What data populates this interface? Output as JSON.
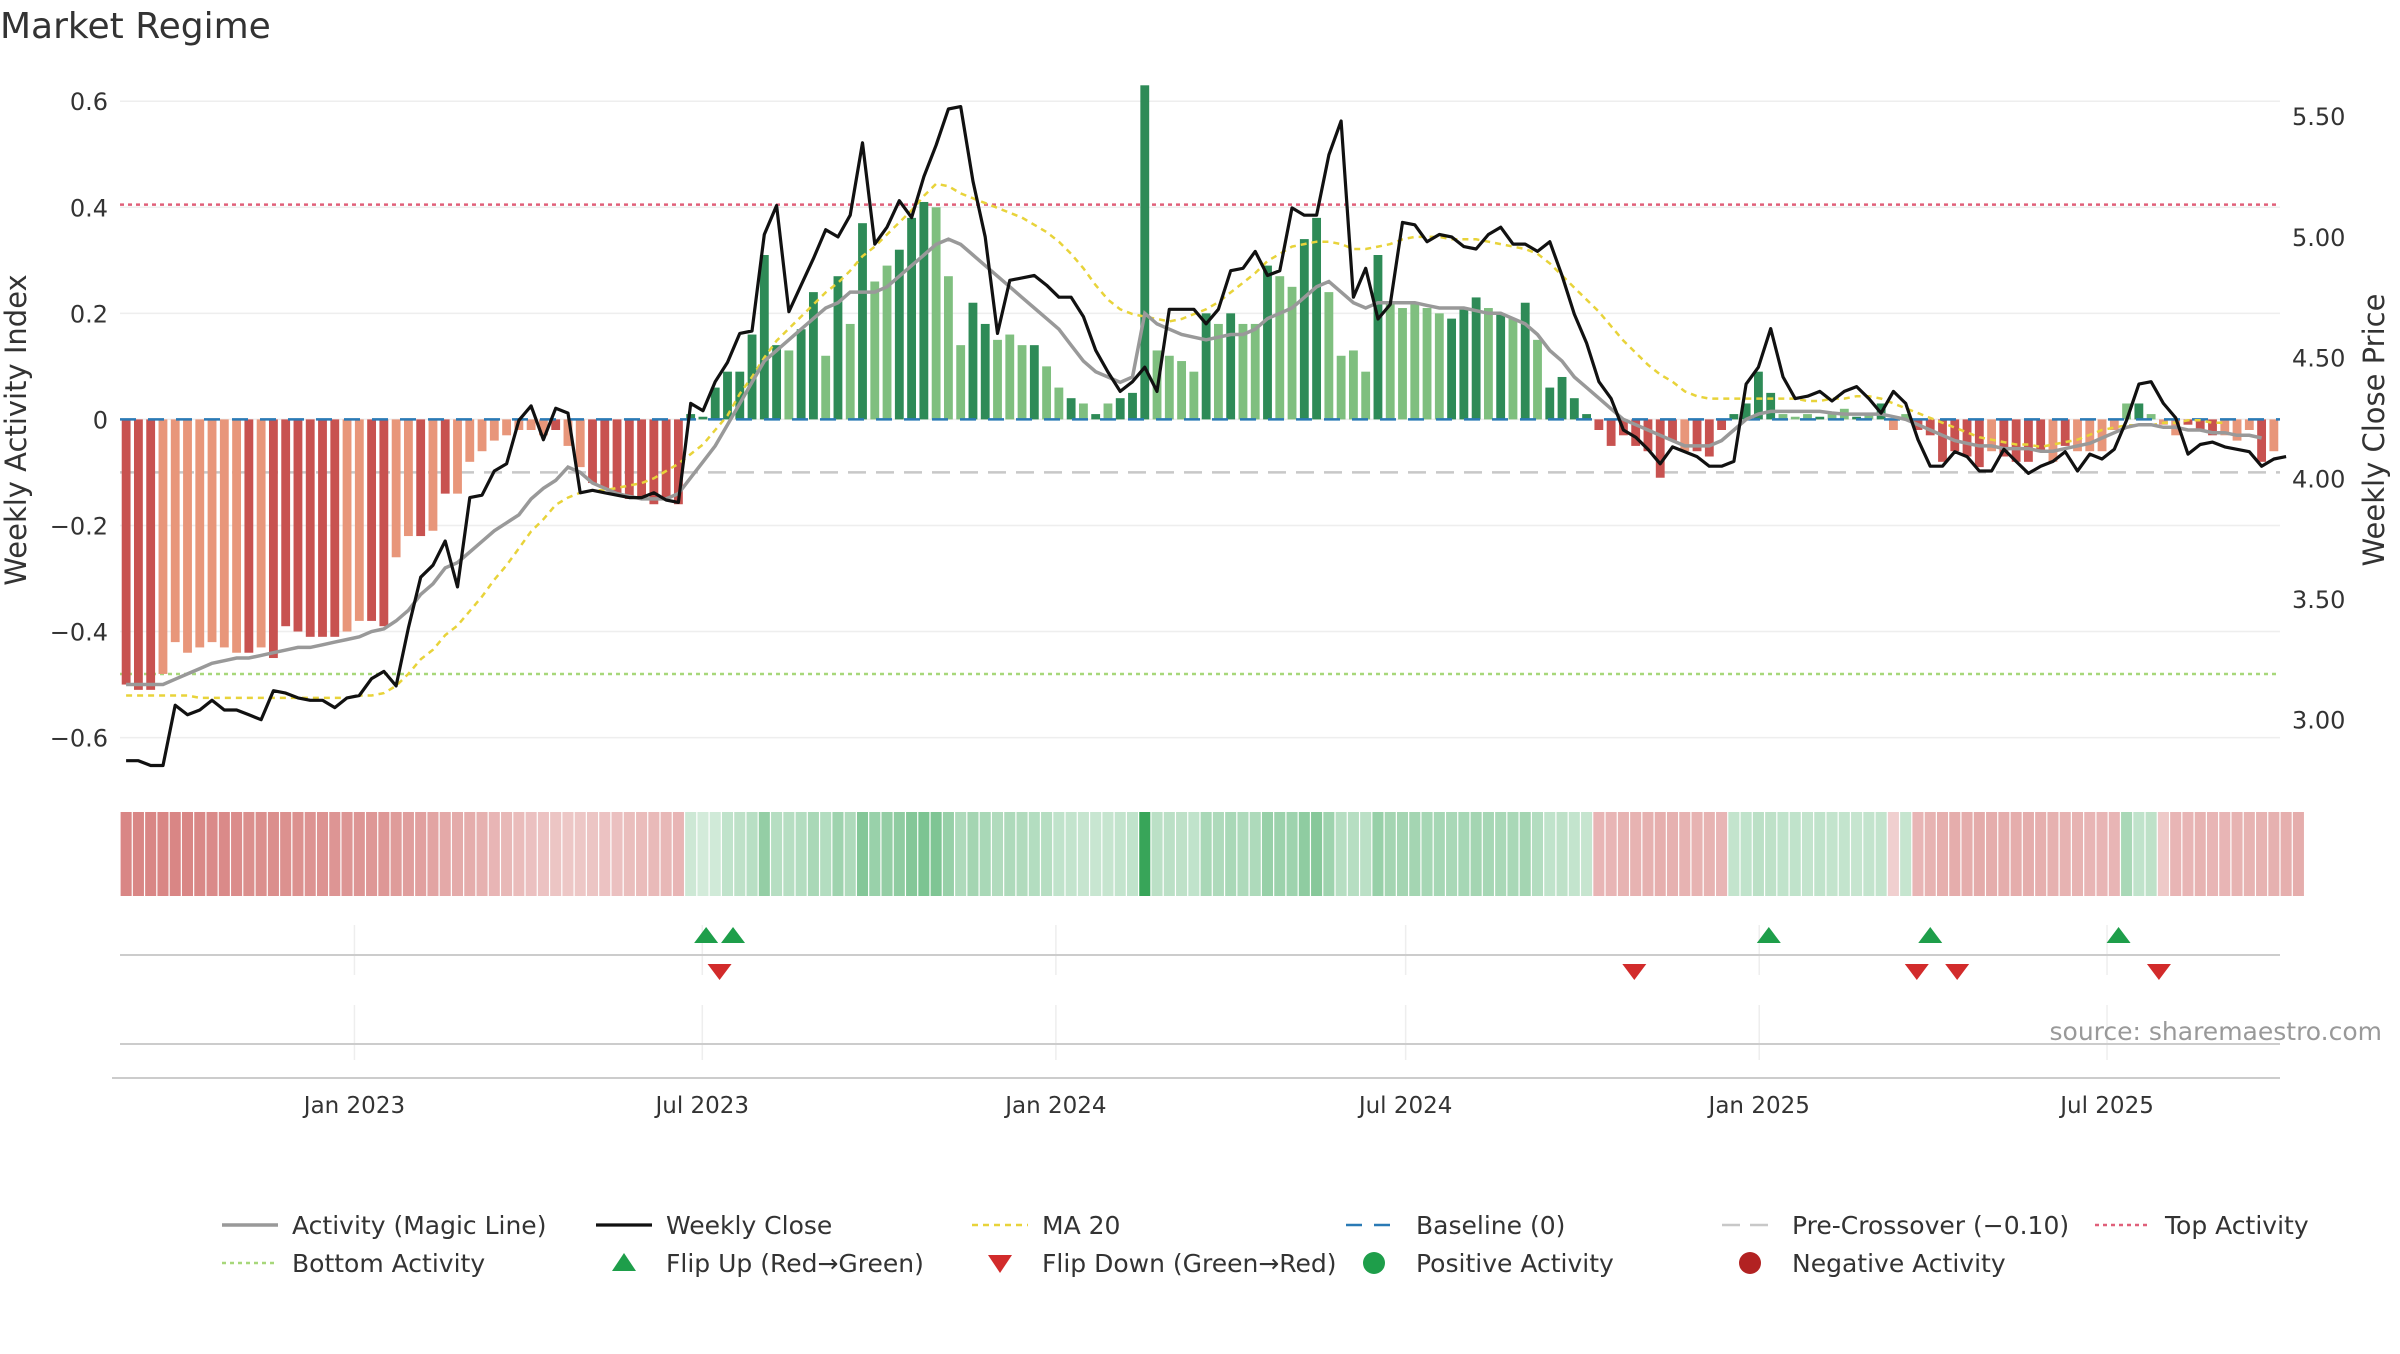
{
  "title": "Market Regime",
  "source": "source: sharemaestro.com",
  "colors": {
    "strong_pos": "#2e8b57",
    "weak_pos": "#7fbf7f",
    "strong_neg": "#c85250",
    "weak_neg": "#e8967a",
    "close": "#111111",
    "magic": "#999999",
    "ma20": "#e8d33a",
    "top": "#e0607a",
    "bottom": "#a7d77a",
    "baseline": "#2a7ab5",
    "precross": "#c8c8c8",
    "flip_up": "#1e9e4a",
    "flip_down": "#d22b2b"
  },
  "chart_data": {
    "type": "bar",
    "x_ticks": [
      "Jan 2023",
      "Jul 2023",
      "Jan 2024",
      "Jul 2024",
      "Jan 2025",
      "Jul 2025"
    ],
    "x_range": [
      "2022-09-01",
      "2025-09-29"
    ],
    "left_axis": {
      "label": "Weekly Activity Index",
      "ylim": [
        -0.68,
        0.64
      ],
      "ticks": [
        0.6,
        0.4,
        0.2,
        0,
        -0.2,
        -0.4,
        -0.6
      ],
      "tick_labels": [
        "0.6",
        "0.4",
        "0.2",
        "0",
        "−0.2",
        "−0.4",
        "−0.6"
      ]
    },
    "right_axis": {
      "label": "Weekly Close Price",
      "ylim": [
        2.75,
        5.65
      ],
      "ticks": [
        5.5,
        5.0,
        4.5,
        4.0,
        3.5,
        3.0
      ],
      "tick_labels": [
        "5.50",
        "5.00",
        "4.50",
        "4.00",
        "3.50",
        "3.00"
      ]
    },
    "reference_lines": {
      "top_activity": 0.405,
      "bottom_activity": -0.48,
      "baseline": 0,
      "pre_crossover": -0.1
    },
    "series": [
      {
        "name": "Activity",
        "values": [
          -0.5,
          -0.51,
          -0.51,
          -0.48,
          -0.42,
          -0.44,
          -0.43,
          -0.42,
          -0.43,
          -0.44,
          -0.44,
          -0.43,
          -0.45,
          -0.39,
          -0.4,
          -0.41,
          -0.41,
          -0.41,
          -0.4,
          -0.38,
          -0.38,
          -0.39,
          -0.26,
          -0.22,
          -0.22,
          -0.21,
          -0.14,
          -0.14,
          -0.08,
          -0.06,
          -0.04,
          -0.03,
          -0.02,
          -0.02,
          -0.03,
          -0.02,
          -0.05,
          -0.09,
          -0.12,
          -0.13,
          -0.14,
          -0.15,
          -0.15,
          -0.16,
          -0.15,
          -0.16,
          0.01,
          0.005,
          0.06,
          0.09,
          0.09,
          0.16,
          0.31,
          0.14,
          0.13,
          0.17,
          0.24,
          0.12,
          0.27,
          0.18,
          0.37,
          0.26,
          0.29,
          0.32,
          0.38,
          0.41,
          0.4,
          0.27,
          0.14,
          0.22,
          0.18,
          0.15,
          0.16,
          0.14,
          0.14,
          0.1,
          0.06,
          0.04,
          0.03,
          0.01,
          0.03,
          0.04,
          0.05,
          0.63,
          0.13,
          0.12,
          0.11,
          0.09,
          0.2,
          0.18,
          0.2,
          0.18,
          0.18,
          0.29,
          0.27,
          0.25,
          0.34,
          0.38,
          0.24,
          0.12,
          0.13,
          0.09,
          0.31,
          0.22,
          0.21,
          0.22,
          0.21,
          0.2,
          0.19,
          0.21,
          0.23,
          0.21,
          0.2,
          0.19,
          0.22,
          0.15,
          0.06,
          0.08,
          0.04,
          0.01,
          -0.02,
          -0.05,
          -0.03,
          -0.05,
          -0.06,
          -0.11,
          -0.04,
          -0.06,
          -0.06,
          -0.07,
          -0.02,
          0.01,
          0.03,
          0.09,
          0.05,
          0.01,
          0.005,
          0.01,
          0.005,
          0.01,
          0.02,
          0.005,
          0.01,
          0.03,
          -0.02,
          0.01,
          -0.02,
          -0.03,
          -0.08,
          -0.06,
          -0.07,
          -0.09,
          -0.06,
          -0.07,
          -0.08,
          -0.08,
          -0.06,
          -0.08,
          -0.05,
          -0.06,
          -0.06,
          -0.06,
          -0.02,
          0.03,
          0.03,
          0.01,
          -0.01,
          -0.03,
          -0.01,
          -0.02,
          -0.03,
          -0.03,
          -0.04,
          -0.02,
          -0.08,
          -0.06
        ],
        "strength": [
          1,
          1,
          1,
          0,
          0,
          0,
          0,
          0,
          0,
          0,
          1,
          0,
          1,
          1,
          1,
          1,
          1,
          1,
          0,
          0,
          1,
          1,
          0,
          0,
          1,
          0,
          1,
          0,
          0,
          0,
          0,
          0,
          0,
          0,
          0,
          1,
          0,
          0,
          1,
          1,
          1,
          1,
          1,
          1,
          1,
          1,
          1,
          1,
          1,
          1,
          1,
          1,
          1,
          1,
          0,
          1,
          1,
          0,
          1,
          0,
          1,
          0,
          0,
          1,
          1,
          1,
          0,
          0,
          0,
          1,
          1,
          0,
          0,
          0,
          1,
          0,
          0,
          1,
          0,
          1,
          0,
          1,
          1,
          1,
          0,
          0,
          0,
          0,
          1,
          0,
          1,
          0,
          0,
          1,
          0,
          0,
          1,
          1,
          0,
          0,
          0,
          0,
          1,
          0,
          0,
          0,
          0,
          0,
          1,
          1,
          1,
          0,
          1,
          0,
          1,
          0,
          1,
          1,
          1,
          1,
          1,
          1,
          1,
          1,
          1,
          1,
          1,
          0,
          1,
          1,
          1,
          1,
          1,
          1,
          1,
          0,
          0,
          0,
          1,
          0,
          0,
          1,
          0,
          1,
          0,
          0,
          1,
          1,
          1,
          1,
          1,
          1,
          0,
          1,
          1,
          1,
          1,
          0,
          1,
          0,
          0,
          0,
          0,
          0,
          1,
          0,
          0,
          0,
          1,
          1,
          1,
          0,
          0,
          0,
          1,
          0,
          1,
          0
        ]
      },
      {
        "name": "Weekly Close",
        "axis": "right",
        "values": [
          2.83,
          2.83,
          2.81,
          2.81,
          3.06,
          3.02,
          3.04,
          3.08,
          3.04,
          3.04,
          3.02,
          3.0,
          3.12,
          3.11,
          3.09,
          3.08,
          3.08,
          3.05,
          3.09,
          3.1,
          3.17,
          3.2,
          3.14,
          3.38,
          3.59,
          3.64,
          3.74,
          3.55,
          3.92,
          3.93,
          4.03,
          4.06,
          4.24,
          4.3,
          4.16,
          4.29,
          4.27,
          3.94,
          3.95,
          3.94,
          3.93,
          3.92,
          3.92,
          3.94,
          3.91,
          3.9,
          4.31,
          4.28,
          4.4,
          4.48,
          4.6,
          4.61,
          5.01,
          5.13,
          4.69,
          4.8,
          4.91,
          5.03,
          5.0,
          5.09,
          5.39,
          4.97,
          5.04,
          5.15,
          5.08,
          5.25,
          5.38,
          5.53,
          5.54,
          5.23,
          5.0,
          4.6,
          4.82,
          4.83,
          4.84,
          4.8,
          4.75,
          4.75,
          4.67,
          4.53,
          4.44,
          4.36,
          4.4,
          4.46,
          4.36,
          4.7,
          4.7,
          4.7,
          4.64,
          4.7,
          4.86,
          4.87,
          4.94,
          4.84,
          4.86,
          5.12,
          5.09,
          5.09,
          5.34,
          5.48,
          4.75,
          4.87,
          4.66,
          4.72,
          5.06,
          5.05,
          4.98,
          5.01,
          5.0,
          4.96,
          4.95,
          5.01,
          5.04,
          4.97,
          4.97,
          4.94,
          4.98,
          4.84,
          4.68,
          4.56,
          4.4,
          4.33,
          4.2,
          4.17,
          4.12,
          4.06,
          4.13,
          4.11,
          4.09,
          4.05,
          4.05,
          4.07,
          4.39,
          4.46,
          4.62,
          4.42,
          4.33,
          4.34,
          4.36,
          4.32,
          4.36,
          4.38,
          4.33,
          4.27,
          4.36,
          4.31,
          4.16,
          4.05,
          4.05,
          4.11,
          4.09,
          4.03,
          4.03,
          4.12,
          4.07,
          4.02,
          4.05,
          4.07,
          4.11,
          4.03,
          4.1,
          4.08,
          4.12,
          4.24,
          4.39,
          4.4,
          4.31,
          4.25,
          4.1,
          4.14,
          4.15,
          4.13,
          4.12,
          4.11,
          4.05,
          4.08,
          4.09
        ]
      },
      {
        "name": "Activity (Magic Line)",
        "values": [
          -0.5,
          -0.5,
          -0.5,
          -0.5,
          -0.49,
          -0.48,
          -0.47,
          -0.46,
          -0.455,
          -0.45,
          -0.45,
          -0.445,
          -0.44,
          -0.435,
          -0.43,
          -0.43,
          -0.425,
          -0.42,
          -0.415,
          -0.41,
          -0.4,
          -0.395,
          -0.38,
          -0.36,
          -0.33,
          -0.31,
          -0.28,
          -0.27,
          -0.25,
          -0.23,
          -0.21,
          -0.195,
          -0.18,
          -0.15,
          -0.13,
          -0.115,
          -0.09,
          -0.1,
          -0.12,
          -0.13,
          -0.14,
          -0.145,
          -0.15,
          -0.15,
          -0.15,
          -0.14,
          -0.11,
          -0.08,
          -0.05,
          -0.01,
          0.03,
          0.07,
          0.11,
          0.13,
          0.15,
          0.17,
          0.19,
          0.21,
          0.22,
          0.24,
          0.24,
          0.24,
          0.25,
          0.27,
          0.29,
          0.31,
          0.33,
          0.34,
          0.33,
          0.31,
          0.29,
          0.27,
          0.25,
          0.23,
          0.21,
          0.19,
          0.17,
          0.14,
          0.11,
          0.09,
          0.08,
          0.07,
          0.08,
          0.2,
          0.18,
          0.17,
          0.16,
          0.155,
          0.15,
          0.155,
          0.16,
          0.16,
          0.17,
          0.19,
          0.2,
          0.21,
          0.23,
          0.25,
          0.26,
          0.24,
          0.22,
          0.21,
          0.22,
          0.22,
          0.22,
          0.22,
          0.215,
          0.21,
          0.21,
          0.21,
          0.205,
          0.2,
          0.2,
          0.19,
          0.18,
          0.16,
          0.13,
          0.11,
          0.08,
          0.06,
          0.04,
          0.02,
          0.0,
          -0.01,
          -0.02,
          -0.03,
          -0.04,
          -0.05,
          -0.05,
          -0.05,
          -0.04,
          -0.02,
          0.0,
          0.01,
          0.015,
          0.015,
          0.015,
          0.015,
          0.015,
          0.012,
          0.01,
          0.01,
          0.01,
          0.01,
          0.005,
          0.0,
          -0.01,
          -0.02,
          -0.03,
          -0.04,
          -0.045,
          -0.05,
          -0.05,
          -0.055,
          -0.055,
          -0.055,
          -0.06,
          -0.06,
          -0.055,
          -0.05,
          -0.045,
          -0.035,
          -0.025,
          -0.015,
          -0.01,
          -0.01,
          -0.015,
          -0.015,
          -0.02,
          -0.02,
          -0.025,
          -0.025,
          -0.03,
          -0.03,
          -0.035
        ]
      },
      {
        "name": "MA 20",
        "axis": "right",
        "values": [
          3.1,
          3.1,
          3.1,
          3.1,
          3.1,
          3.1,
          3.09,
          3.09,
          3.09,
          3.09,
          3.09,
          3.09,
          3.09,
          3.09,
          3.09,
          3.09,
          3.09,
          3.09,
          3.09,
          3.1,
          3.1,
          3.11,
          3.14,
          3.19,
          3.25,
          3.29,
          3.35,
          3.39,
          3.45,
          3.51,
          3.58,
          3.64,
          3.71,
          3.78,
          3.83,
          3.89,
          3.92,
          3.94,
          3.95,
          3.95,
          3.96,
          3.97,
          3.98,
          4.0,
          4.03,
          4.06,
          4.1,
          4.14,
          4.2,
          4.26,
          4.35,
          4.42,
          4.5,
          4.57,
          4.62,
          4.67,
          4.72,
          4.77,
          4.81,
          4.86,
          4.92,
          4.96,
          5.01,
          5.06,
          5.11,
          5.17,
          5.22,
          5.21,
          5.18,
          5.16,
          5.14,
          5.12,
          5.1,
          5.08,
          5.05,
          5.02,
          4.98,
          4.93,
          4.87,
          4.8,
          4.74,
          4.7,
          4.68,
          4.67,
          4.66,
          4.65,
          4.66,
          4.68,
          4.7,
          4.73,
          4.77,
          4.81,
          4.85,
          4.9,
          4.93,
          4.96,
          4.97,
          4.98,
          4.98,
          4.97,
          4.95,
          4.95,
          4.96,
          4.97,
          4.99,
          5.0,
          5.0,
          5.0,
          4.99,
          4.99,
          4.99,
          4.98,
          4.97,
          4.96,
          4.95,
          4.93,
          4.89,
          4.84,
          4.79,
          4.74,
          4.69,
          4.63,
          4.57,
          4.52,
          4.47,
          4.43,
          4.4,
          4.36,
          4.34,
          4.33,
          4.33,
          4.33,
          4.33,
          4.33,
          4.33,
          4.33,
          4.33,
          4.32,
          4.32,
          4.33,
          4.33,
          4.34,
          4.34,
          4.33,
          4.31,
          4.29,
          4.27,
          4.25,
          4.23,
          4.21,
          4.19,
          4.17,
          4.16,
          4.15,
          4.14,
          4.14,
          4.13,
          4.14,
          4.15,
          4.16,
          4.18,
          4.2,
          4.21,
          4.22,
          4.22,
          4.22,
          4.23,
          4.23,
          4.24,
          4.24,
          4.23,
          4.23
        ]
      }
    ],
    "band": {
      "levels": [
        0.4,
        0.4,
        0.4,
        0.4,
        0.4,
        0.4,
        0.39,
        0.38,
        0.38,
        0.37,
        0.36,
        0.36,
        0.36,
        0.35,
        0.35,
        0.34,
        0.34,
        0.33,
        0.33,
        0.33,
        0.32,
        0.32,
        0.3,
        0.29,
        0.28,
        0.26,
        0.24,
        0.23,
        0.22,
        0.2,
        0.18,
        0.17,
        0.15,
        0.13,
        0.12,
        0.11,
        0.1,
        0.1,
        0.11,
        0.12,
        0.13,
        0.14,
        0.15,
        0.16,
        0.17,
        0.18,
        0.03,
        0.01,
        0.02,
        0.08,
        0.09,
        0.11,
        0.25,
        0.12,
        0.12,
        0.13,
        0.17,
        0.13,
        0.21,
        0.15,
        0.31,
        0.23,
        0.25,
        0.27,
        0.31,
        0.34,
        0.33,
        0.24,
        0.15,
        0.19,
        0.17,
        0.14,
        0.15,
        0.14,
        0.13,
        0.12,
        0.08,
        0.07,
        0.06,
        0.05,
        0.06,
        0.07,
        0.08,
        0.6,
        0.1,
        0.1,
        0.09,
        0.08,
        0.17,
        0.15,
        0.17,
        0.15,
        0.15,
        0.24,
        0.22,
        0.21,
        0.27,
        0.3,
        0.21,
        0.12,
        0.12,
        0.1,
        0.24,
        0.19,
        0.19,
        0.19,
        0.18,
        0.18,
        0.17,
        0.18,
        0.19,
        0.18,
        0.17,
        0.17,
        0.19,
        0.13,
        0.08,
        0.09,
        0.07,
        0.06,
        0.18,
        0.18,
        0.19,
        0.19,
        0.2,
        0.21,
        0.2,
        0.19,
        0.19,
        0.19,
        0.18,
        0.07,
        0.08,
        0.1,
        0.09,
        0.08,
        0.08,
        0.07,
        0.08,
        0.07,
        0.07,
        0.06,
        0.07,
        0.07,
        0.06,
        0.06,
        0.18,
        0.19,
        0.21,
        0.22,
        0.22,
        0.23,
        0.22,
        0.22,
        0.22,
        0.22,
        0.21,
        0.2,
        0.19,
        0.19,
        0.18,
        0.18,
        0.18,
        0.17,
        0.08,
        0.09,
        0.09,
        0.18,
        0.18,
        0.19,
        0.18,
        0.18,
        0.19,
        0.19,
        0.19,
        0.2,
        0.21,
        0.22
      ]
    },
    "flips": {
      "up": [
        "2023-07-03",
        "2023-07-17",
        "2025-01-06",
        "2025-03-31",
        "2025-07-07"
      ],
      "down": [
        "2023-07-10",
        "2024-10-28",
        "2025-03-24",
        "2025-04-14",
        "2025-07-28"
      ]
    },
    "legend": {
      "placement": "bottom",
      "items": [
        {
          "label": "Activity (Magic Line)",
          "kind": "magic"
        },
        {
          "label": "Weekly Close",
          "kind": "close"
        },
        {
          "label": "MA 20",
          "kind": "ma20"
        },
        {
          "label": "Baseline (0)",
          "kind": "baseline"
        },
        {
          "label": "Pre-Crossover (−0.10)",
          "kind": "precross"
        },
        {
          "label": "Top Activity",
          "kind": "top"
        },
        {
          "label": "Bottom Activity",
          "kind": "bottom"
        },
        {
          "label": "Flip Up (Red→Green)",
          "kind": "flip_up"
        },
        {
          "label": "Flip Down (Green→Red)",
          "kind": "flip_down"
        },
        {
          "label": "Positive Activity",
          "kind": "pos_dot"
        },
        {
          "label": "Negative Activity",
          "kind": "neg_dot"
        }
      ]
    },
    "grid": true
  }
}
